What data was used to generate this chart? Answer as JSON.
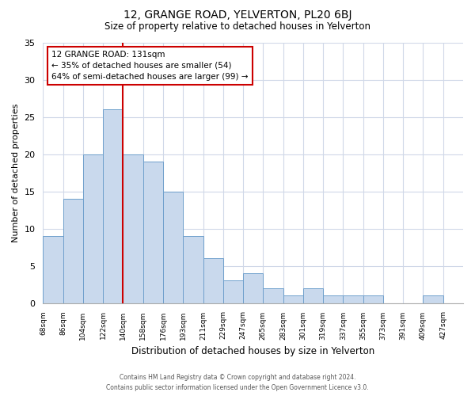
{
  "title": "12, GRANGE ROAD, YELVERTON, PL20 6BJ",
  "subtitle": "Size of property relative to detached houses in Yelverton",
  "xlabel": "Distribution of detached houses by size in Yelverton",
  "ylabel": "Number of detached properties",
  "bin_labels": [
    "68sqm",
    "86sqm",
    "104sqm",
    "122sqm",
    "140sqm",
    "158sqm",
    "176sqm",
    "193sqm",
    "211sqm",
    "229sqm",
    "247sqm",
    "265sqm",
    "283sqm",
    "301sqm",
    "319sqm",
    "337sqm",
    "355sqm",
    "373sqm",
    "391sqm",
    "409sqm",
    "427sqm"
  ],
  "bar_heights": [
    9,
    14,
    20,
    26,
    20,
    19,
    15,
    9,
    6,
    3,
    4,
    2,
    1,
    2,
    1,
    1,
    1,
    0,
    0,
    1,
    0
  ],
  "bar_color": "#c9d9ed",
  "bar_edge_color": "#6fa0cc",
  "property_line_index": 4,
  "property_line_color": "#cc0000",
  "annotation_title": "12 GRANGE ROAD: 131sqm",
  "annotation_line1": "← 35% of detached houses are smaller (54)",
  "annotation_line2": "64% of semi-detached houses are larger (99) →",
  "annotation_box_color": "#ffffff",
  "annotation_box_edge_color": "#cc0000",
  "ylim": [
    0,
    35
  ],
  "yticks": [
    0,
    5,
    10,
    15,
    20,
    25,
    30,
    35
  ],
  "footer_line1": "Contains HM Land Registry data © Crown copyright and database right 2024.",
  "footer_line2": "Contains public sector information licensed under the Open Government Licence v3.0.",
  "background_color": "#ffffff",
  "grid_color": "#d0d8e8"
}
